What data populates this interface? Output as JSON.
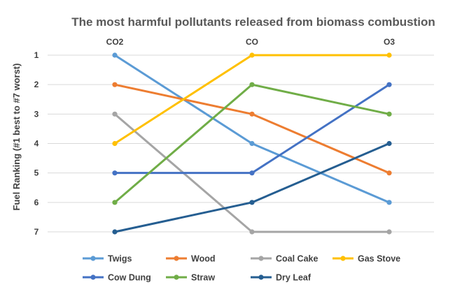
{
  "chart_data": {
    "type": "line",
    "title": "The most harmful pollutants released from biomass combustion",
    "xlabel": "",
    "ylabel": "Fuel Ranking (#1 best to #7 worst)",
    "categories": [
      "CO2",
      "CO",
      "O3"
    ],
    "y_ticks": [
      1,
      2,
      3,
      4,
      5,
      6,
      7
    ],
    "ylim": [
      1,
      7
    ],
    "y_reversed": true,
    "x_axis_position": "top",
    "grid": true,
    "legend_position": "bottom",
    "series": [
      {
        "name": "Twigs",
        "values": [
          1,
          4,
          6
        ],
        "color": "#5b9bd5"
      },
      {
        "name": "Wood",
        "values": [
          2,
          3,
          5
        ],
        "color": "#ed7d31"
      },
      {
        "name": "Coal Cake",
        "values": [
          3,
          7,
          7
        ],
        "color": "#a5a5a5"
      },
      {
        "name": "Gas Stove",
        "values": [
          4,
          1,
          1
        ],
        "color": "#ffc000"
      },
      {
        "name": "Cow Dung",
        "values": [
          5,
          5,
          2
        ],
        "color": "#4472c4"
      },
      {
        "name": "Straw",
        "values": [
          6,
          2,
          3
        ],
        "color": "#70ad47"
      },
      {
        "name": "Dry Leaf",
        "values": [
          7,
          6,
          4
        ],
        "color": "#255e91"
      }
    ]
  }
}
